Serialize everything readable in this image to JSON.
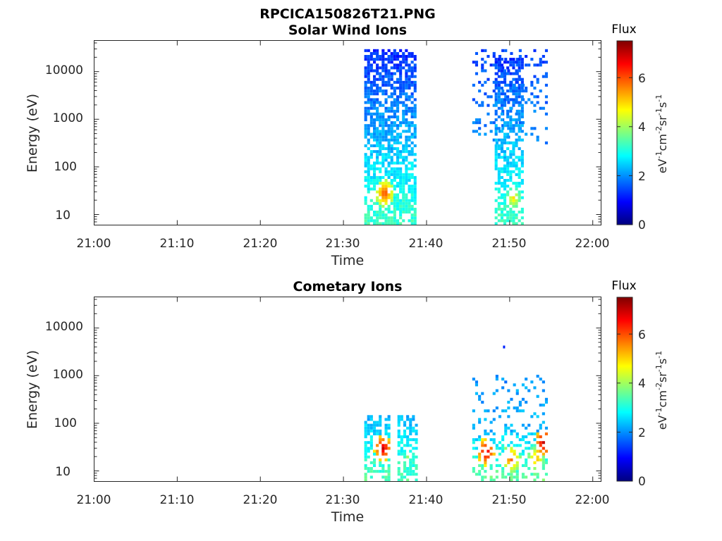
{
  "figure_title": "RPCICA150826T21.PNG",
  "colormap": [
    "#00007f",
    "#0000ff",
    "#007fff",
    "#00ffff",
    "#7fff7f",
    "#ffff00",
    "#ff7f00",
    "#ff0000",
    "#7f0000"
  ],
  "chart_data": [
    {
      "type": "heatmap",
      "title": "Solar Wind Ions",
      "xlabel": "Time",
      "ylabel": "Energy (eV)",
      "x_ticks": [
        "21:00",
        "21:10",
        "21:20",
        "21:30",
        "21:40",
        "21:50",
        "22:00"
      ],
      "xlim_minutes": [
        0,
        61
      ],
      "y_scale": "log",
      "y_ticks": [
        "10",
        "100",
        "1000",
        "10000"
      ],
      "ylim": [
        6,
        45000
      ],
      "colorbar": {
        "title": "Flux",
        "ticks": [
          "0",
          "2",
          "4",
          "6"
        ],
        "range": [
          0,
          7.5
        ],
        "unit_base": [
          "eV",
          "cm",
          "sr",
          "s"
        ],
        "unit_exp": [
          "-1",
          "-2",
          "-1",
          "-1"
        ]
      },
      "blocks": [
        {
          "t_start": 32.5,
          "t_end": 38.8,
          "e_low": 6,
          "e_high": 30000,
          "flux_low_energy": 3.3,
          "flux_high_energy": 1.2,
          "density": 0.7,
          "hotspots": [
            {
              "t": 34.8,
              "e": 28,
              "flux": 6.2
            }
          ]
        },
        {
          "t_start": 45.5,
          "t_end": 54.5,
          "e_low": 300,
          "e_high": 30000,
          "flux_low_energy": 2.0,
          "flux_high_energy": 1.4,
          "density": 0.18,
          "hotspots": []
        },
        {
          "t_start": 48.2,
          "t_end": 51.5,
          "e_low": 6,
          "e_high": 20000,
          "flux_low_energy": 3.3,
          "flux_high_energy": 1.3,
          "density": 0.6,
          "hotspots": [
            {
              "t": 50.3,
              "e": 22,
              "flux": 5.0
            }
          ]
        }
      ]
    },
    {
      "type": "heatmap",
      "title": "Cometary Ions",
      "xlabel": "Time",
      "ylabel": "Energy (eV)",
      "x_ticks": [
        "21:00",
        "21:10",
        "21:20",
        "21:30",
        "21:40",
        "21:50",
        "22:00"
      ],
      "xlim_minutes": [
        0,
        61
      ],
      "y_scale": "log",
      "y_ticks": [
        "10",
        "100",
        "1000",
        "10000"
      ],
      "ylim": [
        6,
        45000
      ],
      "colorbar": {
        "title": "Flux",
        "ticks": [
          "0",
          "2",
          "4",
          "6"
        ],
        "range": [
          0,
          7.5
        ],
        "unit_base": [
          "eV",
          "cm",
          "sr",
          "s"
        ],
        "unit_exp": [
          "-1",
          "-2",
          "-1",
          "-1"
        ]
      },
      "blocks": [
        {
          "t_start": 32.5,
          "t_end": 35.5,
          "e_low": 6,
          "e_high": 140,
          "flux_low_energy": 3.5,
          "flux_high_energy": 2.3,
          "density": 0.55,
          "hotspots": [
            {
              "t": 34.6,
              "e": 30,
              "flux": 7.0
            }
          ]
        },
        {
          "t_start": 36.5,
          "t_end": 38.8,
          "e_low": 6,
          "e_high": 140,
          "flux_low_energy": 3.4,
          "flux_high_energy": 2.3,
          "density": 0.55,
          "hotspots": [
            {
              "t": 37.6,
              "e": 20,
              "flux": 4.0
            }
          ]
        },
        {
          "t_start": 45.5,
          "t_end": 54.5,
          "e_low": 60,
          "e_high": 1000,
          "flux_low_energy": 2.3,
          "flux_high_energy": 2.0,
          "density": 0.13,
          "hotspots": []
        },
        {
          "t_start": 45.5,
          "t_end": 54.5,
          "e_low": 6,
          "e_high": 60,
          "flux_low_energy": 3.6,
          "flux_high_energy": 2.5,
          "density": 0.35,
          "hotspots": [
            {
              "t": 47.0,
              "e": 25,
              "flux": 7.0
            },
            {
              "t": 50.0,
              "e": 18,
              "flux": 6.0
            },
            {
              "t": 53.0,
              "e": 18,
              "flux": 5.5
            },
            {
              "t": 54.0,
              "e": 40,
              "flux": 7.2
            }
          ]
        }
      ],
      "isolated_points": [
        {
          "t": 49.2,
          "e": 4000,
          "flux": 1.2
        }
      ]
    }
  ]
}
